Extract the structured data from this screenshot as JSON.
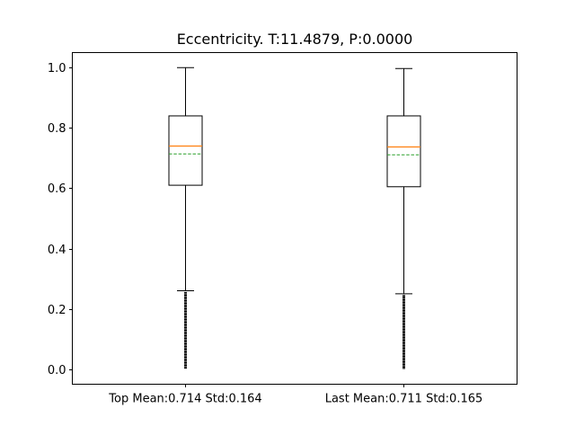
{
  "chart_data": {
    "type": "box",
    "title": "Eccentricity. T:11.4879, P:0.0000",
    "xlabel": "",
    "ylabel": "",
    "ylim": [
      -0.05,
      1.05
    ],
    "yticks": [
      0.0,
      0.2,
      0.4,
      0.6,
      0.8,
      1.0
    ],
    "ytick_labels": [
      "0.0",
      "0.2",
      "0.4",
      "0.6",
      "0.8",
      "1.0"
    ],
    "grid": false,
    "categories": [
      "Top Mean:0.714 Std:0.164",
      "Last Mean:0.711 Std:0.165"
    ],
    "series": [
      {
        "label": "Top Mean:0.714 Std:0.164",
        "whisker_low": 0.26,
        "q1": 0.61,
        "median": 0.74,
        "mean": 0.714,
        "q3": 0.84,
        "whisker_high": 1.0,
        "outliers_min": 0.0,
        "outliers_max": 0.26
      },
      {
        "label": "Last Mean:0.711 Std:0.165",
        "whisker_low": 0.25,
        "q1": 0.605,
        "median": 0.737,
        "mean": 0.711,
        "q3": 0.84,
        "whisker_high": 0.997,
        "outliers_min": 0.0,
        "outliers_max": 0.25
      }
    ],
    "colors": {
      "box": "#000000",
      "median": "#ff7f0e",
      "mean": "#2ca02c",
      "axes": "#000000",
      "text": "#000000"
    }
  }
}
